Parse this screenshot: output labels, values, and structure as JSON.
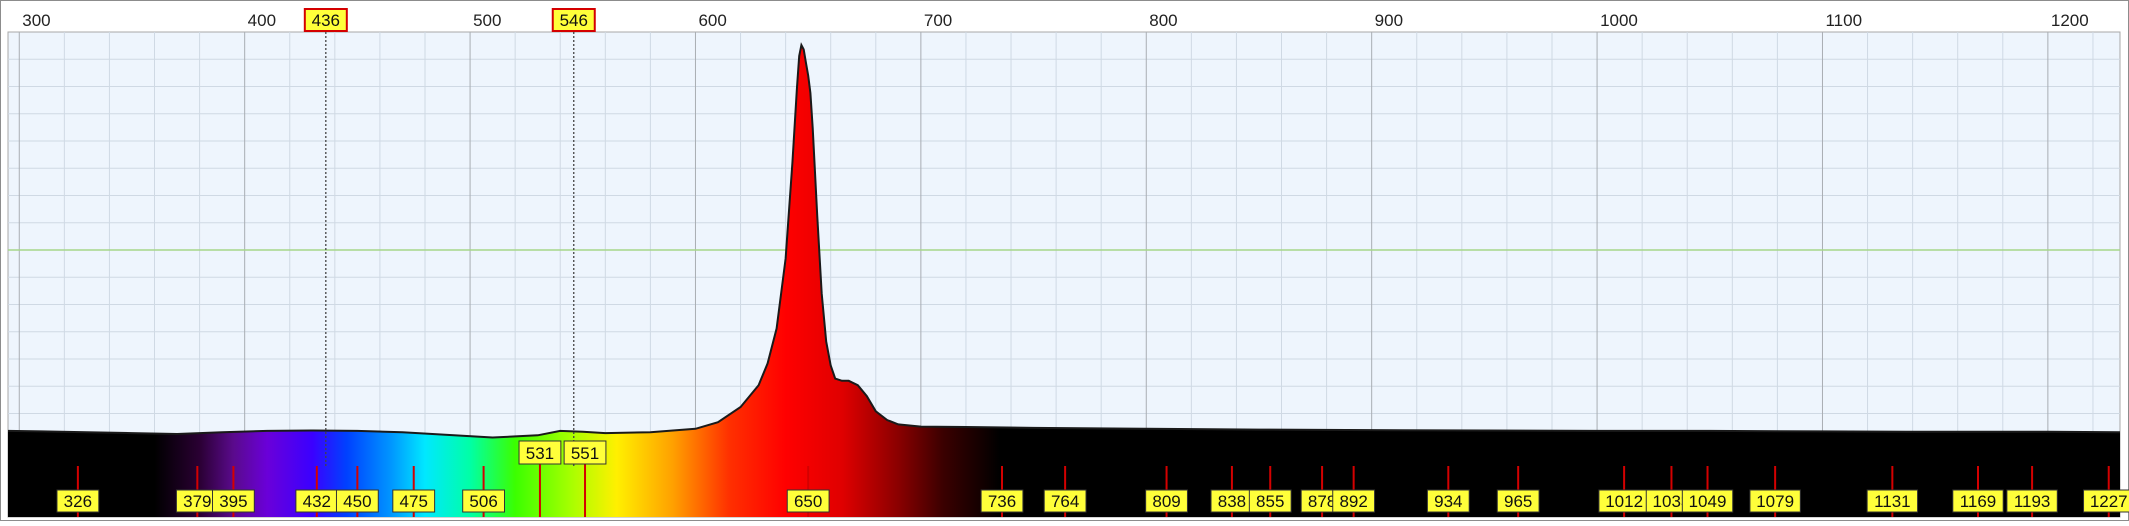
{
  "chart_data": {
    "type": "area",
    "title": "",
    "xlabel": "",
    "ylabel": "",
    "xlim": [
      295,
      1232
    ],
    "ylim": [
      0,
      1
    ],
    "grid": true,
    "x_ticks": [
      300,
      400,
      500,
      600,
      700,
      800,
      900,
      1000,
      1100,
      1200
    ],
    "calibration_markers": [
      {
        "label": "436",
        "x": 436
      },
      {
        "label": "546",
        "x": 546
      }
    ],
    "series": [
      {
        "x": [
          295,
          310,
          330,
          350,
          370,
          390,
          410,
          430,
          450,
          470,
          490,
          510,
          530,
          540,
          550,
          560,
          580,
          600,
          610,
          620,
          628,
          632,
          636,
          640,
          643,
          645,
          646,
          647,
          648,
          649,
          650,
          651,
          652,
          654,
          656,
          658,
          660,
          662,
          665,
          668,
          672,
          676,
          680,
          685,
          690,
          700,
          720,
          750,
          800,
          850,
          900,
          950,
          1000,
          1050,
          1100,
          1150,
          1200,
          1232
        ],
        "y": [
          0.085,
          0.084,
          0.082,
          0.08,
          0.078,
          0.082,
          0.085,
          0.086,
          0.085,
          0.082,
          0.076,
          0.07,
          0.075,
          0.085,
          0.083,
          0.08,
          0.082,
          0.09,
          0.105,
          0.14,
          0.19,
          0.24,
          0.32,
          0.48,
          0.7,
          0.87,
          0.945,
          0.97,
          0.96,
          0.93,
          0.9,
          0.86,
          0.78,
          0.58,
          0.4,
          0.29,
          0.235,
          0.205,
          0.2,
          0.2,
          0.19,
          0.165,
          0.13,
          0.11,
          0.1,
          0.095,
          0.094,
          0.092,
          0.09,
          0.088,
          0.087,
          0.086,
          0.085,
          0.085,
          0.084,
          0.083,
          0.083,
          0.082
        ]
      }
    ],
    "peak_labels": [
      "326",
      "379",
      "395",
      "432",
      "450",
      "475",
      "506",
      "531",
      "551",
      "650",
      "736",
      "764",
      "809",
      "838",
      "855",
      "878",
      "892",
      "934",
      "965",
      "1012",
      "1033",
      "1049",
      "1079",
      "1131",
      "1169",
      "1193",
      "1227"
    ],
    "peak_positions": [
      326,
      379,
      395,
      432,
      450,
      475,
      506,
      531,
      551,
      650,
      736,
      764,
      809,
      838,
      855,
      878,
      892,
      934,
      965,
      1012,
      1033,
      1049,
      1079,
      1131,
      1169,
      1193,
      1227
    ]
  }
}
